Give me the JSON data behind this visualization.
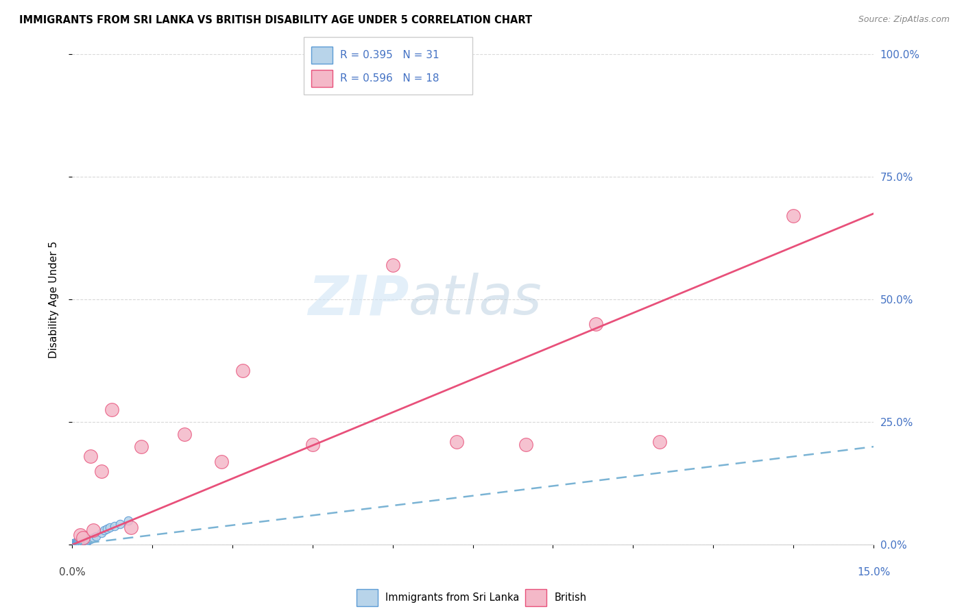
{
  "title": "IMMIGRANTS FROM SRI LANKA VS BRITISH DISABILITY AGE UNDER 5 CORRELATION CHART",
  "source": "Source: ZipAtlas.com",
  "ylabel": "Disability Age Under 5",
  "ytick_values": [
    0,
    25,
    50,
    75,
    100
  ],
  "xlim": [
    0,
    15
  ],
  "ylim": [
    0,
    100
  ],
  "legend_r1": "R = 0.395",
  "legend_n1": "N = 31",
  "legend_r2": "R = 0.596",
  "legend_n2": "N = 18",
  "watermark_zip": "ZIP",
  "watermark_atlas": "atlas",
  "sri_lanka_color": "#b8d4ea",
  "sri_lanka_edge": "#5b9bd5",
  "british_color": "#f4b8c8",
  "british_edge": "#e8507a",
  "regression_blue_color": "#7ab3d4",
  "regression_pink_color": "#e8507a",
  "right_tick_color": "#4472c4",
  "title_color": "#000000",
  "source_color": "#888888",
  "grid_color": "#d0d0d0",
  "sri_lanka_x": [
    0.02,
    0.03,
    0.04,
    0.05,
    0.06,
    0.07,
    0.08,
    0.09,
    0.1,
    0.11,
    0.12,
    0.13,
    0.14,
    0.15,
    0.17,
    0.19,
    0.2,
    0.22,
    0.25,
    0.28,
    0.3,
    0.35,
    0.4,
    0.45,
    0.55,
    0.6,
    0.65,
    0.7,
    0.8,
    0.9,
    1.05
  ],
  "sri_lanka_y": [
    0.3,
    0.2,
    0.4,
    0.3,
    0.5,
    0.2,
    0.4,
    0.3,
    0.5,
    0.4,
    0.6,
    0.3,
    0.5,
    0.4,
    0.6,
    0.5,
    0.7,
    0.6,
    0.8,
    0.7,
    1.0,
    1.2,
    1.5,
    1.8,
    2.5,
    3.0,
    3.2,
    3.5,
    3.8,
    4.2,
    5.0
  ],
  "british_x": [
    0.15,
    0.2,
    0.35,
    0.4,
    0.55,
    0.75,
    1.1,
    1.3,
    2.1,
    2.8,
    3.2,
    4.5,
    6.0,
    7.2,
    8.5,
    9.8,
    11.0,
    13.5
  ],
  "british_y": [
    2.0,
    1.5,
    18.0,
    3.0,
    15.0,
    27.5,
    3.5,
    20.0,
    22.5,
    17.0,
    35.5,
    20.5,
    57.0,
    21.0,
    20.5,
    45.0,
    21.0,
    67.0
  ],
  "sl_reg_x0": 0,
  "sl_reg_y0": 0.0,
  "sl_reg_x1": 15,
  "sl_reg_y1": 20.0,
  "br_reg_x0": 0,
  "br_reg_y0": 0.0,
  "br_reg_x1": 15,
  "br_reg_y1": 67.5
}
